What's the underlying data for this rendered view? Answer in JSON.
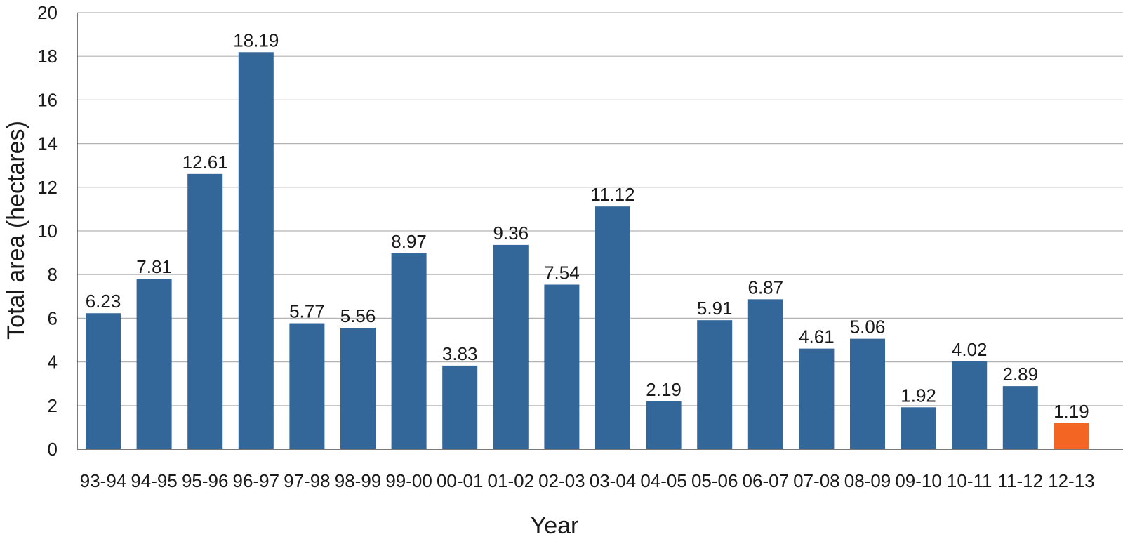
{
  "chart_data": {
    "type": "bar",
    "xlabel": "Year",
    "ylabel": "Total area (hectares)",
    "ylim": [
      0,
      20
    ],
    "yticks": [
      0,
      2,
      4,
      6,
      8,
      10,
      12,
      14,
      16,
      18,
      20
    ],
    "grid": true,
    "categories": [
      "93-94",
      "94-95",
      "95-96",
      "96-97",
      "97-98",
      "98-99",
      "99-00",
      "00-01",
      "01-02",
      "02-03",
      "03-04",
      "04-05",
      "05-06",
      "06-07",
      "07-08",
      "08-09",
      "09-10",
      "10-11",
      "11-12",
      "12-13"
    ],
    "values": [
      6.23,
      7.81,
      12.61,
      18.19,
      5.77,
      5.56,
      8.97,
      3.83,
      9.36,
      7.54,
      11.12,
      2.19,
      5.91,
      6.87,
      4.61,
      5.06,
      1.92,
      4.02,
      2.89,
      1.19
    ],
    "value_labels": [
      "6.23",
      "7.81",
      "12.61",
      "18.19",
      "5.77",
      "5.56",
      "8.97",
      "3.83",
      "9.36",
      "7.54",
      "11.12",
      "2.19",
      "5.91",
      "6.87",
      "4.61",
      "5.06",
      "1.92",
      "4.02",
      "2.89",
      "1.19"
    ],
    "colors": {
      "bar": "#336699",
      "highlight_bar": "#f26522",
      "grid": "#b3b3b3",
      "axis": "#4d4d4d"
    },
    "highlight_category": "12-13"
  }
}
